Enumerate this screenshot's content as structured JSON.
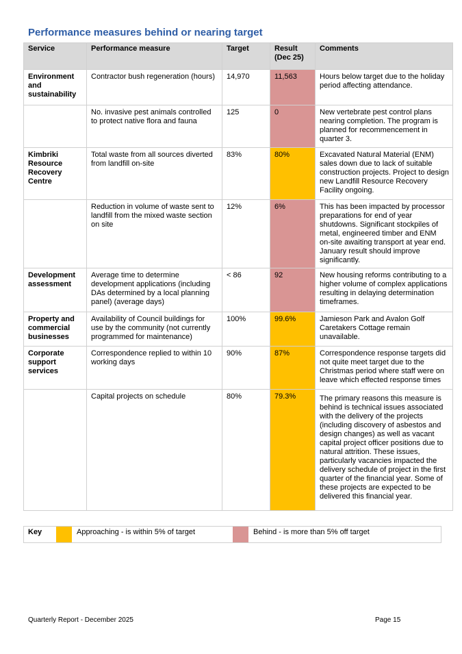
{
  "title": "Performance measures behind or nearing target",
  "table": {
    "headers": [
      "Service",
      "Performance measure",
      "Target",
      "Result (Dec 25)",
      "Comments"
    ],
    "rows": [
      {
        "service": "Environment and sustainability",
        "measure": "Contractor bush regeneration (hours)",
        "target": "14,970",
        "result": "11,563",
        "status": "behind",
        "comment": "Hours below target due to the holiday period affecting attendance."
      },
      {
        "service": "",
        "measure": "No. invasive pest animals controlled to protect native flora and fauna",
        "target": "125",
        "result": "0",
        "status": "behind",
        "comment": "New vertebrate pest control plans nearing completion. The program is planned for recommencement in quarter 3."
      },
      {
        "service": "Kimbriki Resource Recovery Centre",
        "measure": "Total waste from all sources diverted from landfill on-site",
        "target": "83%",
        "result": "80%",
        "status": "approaching",
        "comment": "Excavated Natural Material (ENM) sales down due to lack of suitable construction projects. Project to design new Landfill Resource Recovery Facility ongoing."
      },
      {
        "service": "",
        "measure": "Reduction in volume of waste sent to landfill from the mixed waste section on site",
        "target": "12%",
        "result": "6%",
        "status": "behind",
        "comment": "This has been impacted by processor preparations for end of year shutdowns. Significant stockpiles of metal, engineered timber and ENM on-site awaiting transport at year end. January result should improve significantly."
      },
      {
        "service": "Development assessment",
        "measure": "Average time to determine development applications (including DAs determined by a local planning panel) (average days)",
        "target": "< 86",
        "result": "92",
        "status": "behind",
        "comment": "New housing reforms contributing to a higher volume of complex applications resulting in delaying determination timeframes."
      },
      {
        "service": "Property and commercial businesses",
        "measure": "Availability of Council buildings for use by the community (not currently programmed for maintenance)",
        "target": "100%",
        "result": "99.6%",
        "status": "approaching",
        "comment": "Jamieson Park and Avalon Golf Caretakers Cottage remain unavailable."
      },
      {
        "service": "Corporate support services",
        "measure": "Correspondence replied to within 10 working days",
        "target": "90%",
        "result": "87%",
        "status": "approaching",
        "comment": "Correspondence response targets did not quite meet target due to the Christmas period where staff were on leave which effected response times"
      },
      {
        "service": "",
        "measure": "Capital projects on schedule",
        "target": "80%",
        "result": "79.3%",
        "status": "approaching",
        "comment": "The primary reasons this measure is behind is technical issues associated with the delivery of the projects (including discovery of asbestos and design changes) as well as vacant capital project officer positions due to natural attrition. These issues, particularly vacancies impacted the delivery schedule of project in the first quarter of the financial year. Some of these projects are expected to be delivered this financial year."
      }
    ]
  },
  "key": {
    "label": "Key",
    "approaching": "Approaching - is within 5% of target",
    "behind": "Behind - is more than 5% off target",
    "approaching_color": "#ffc000",
    "behind_color": "#d99594"
  },
  "footer": {
    "left": "Quarterly Report - December 2025",
    "right": "Page 15"
  }
}
